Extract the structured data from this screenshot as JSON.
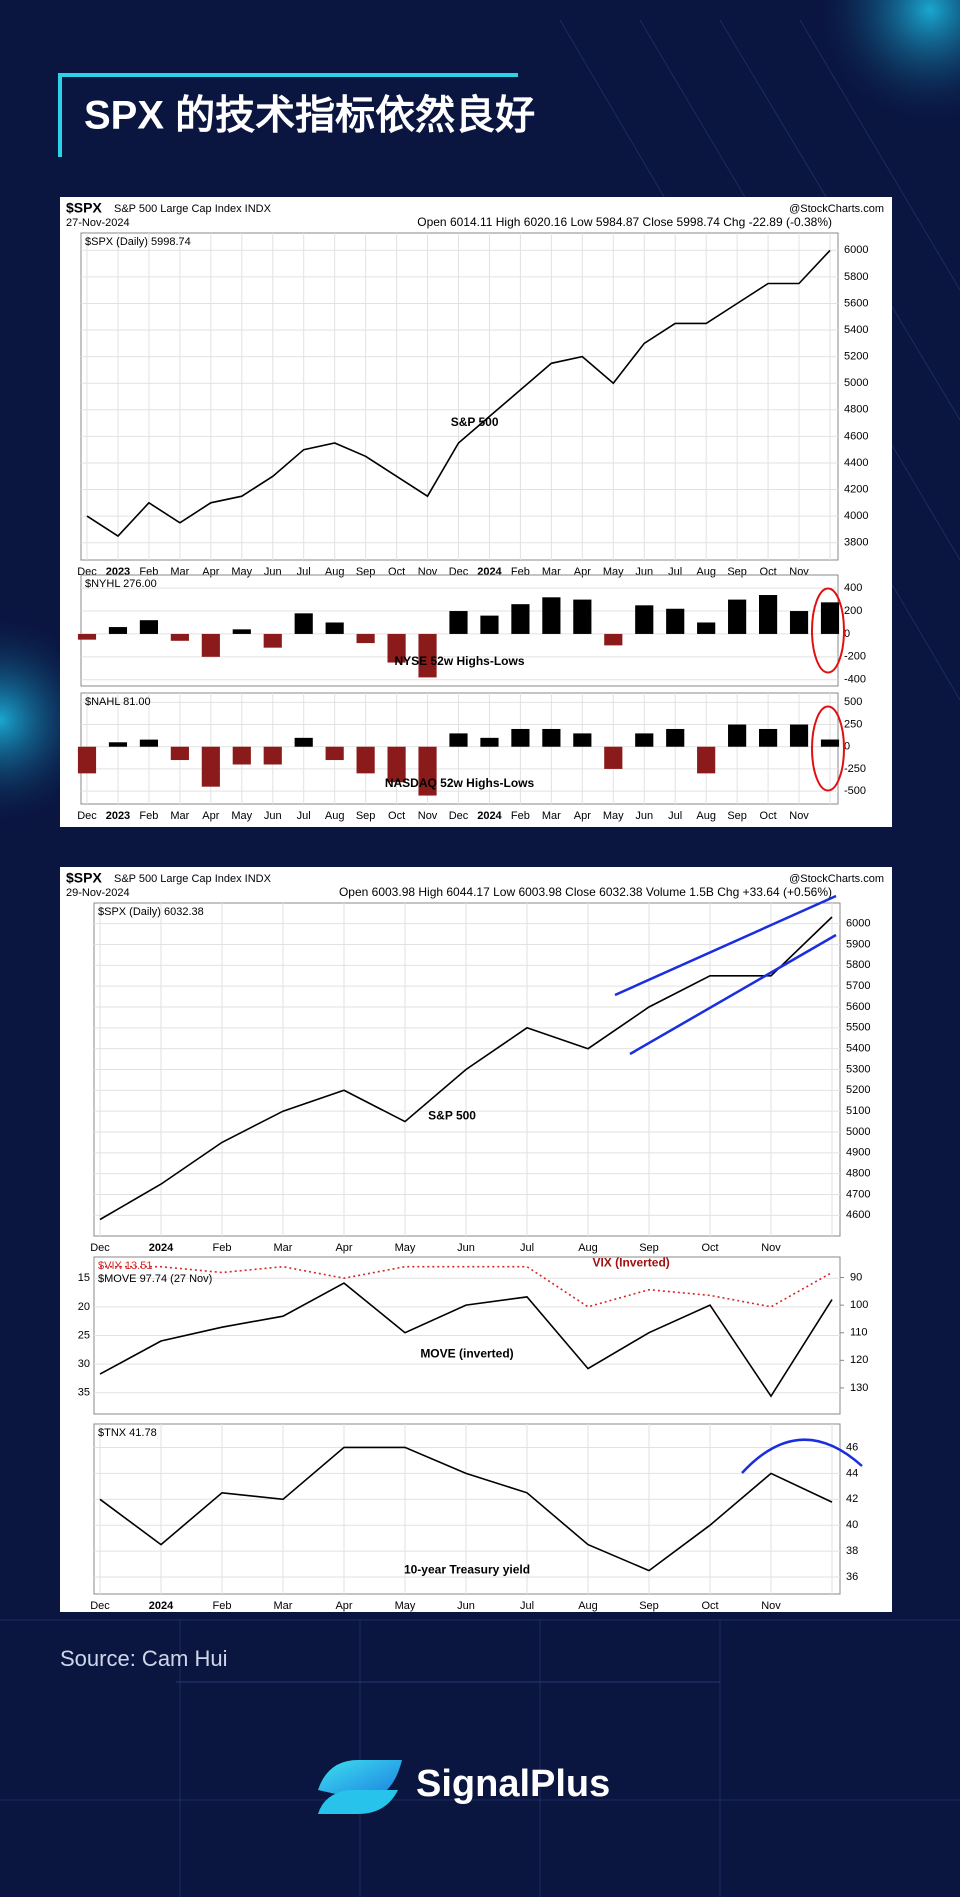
{
  "header": {
    "title": "SPX 的技术指标依然良好"
  },
  "figures": [
    {
      "symbol": "$SPX",
      "name": "S&P 500 Large Cap Index INDX",
      "date": "27-Nov-2024",
      "credit": "@StockCharts.com",
      "quote": "Open 6014.11  High 6020.16  Low 5984.87  Close 5998.74  Chg -22.89 (-0.38%)"
    },
    {
      "symbol": "$SPX",
      "name": "S&P 500 Large Cap Index INDX",
      "date": "29-Nov-2024",
      "credit": "@StockCharts.com",
      "quote": "Open 6003.98  High 6044.17  Low 6003.98  Close 6032.38  Volume 1.5B  Chg +33.64 (+0.56%)"
    }
  ],
  "chart_data": [
    {
      "type": "line",
      "yaxis_side": "right",
      "annotations": [
        "S&P 500"
      ],
      "categories": [
        "Dec",
        "2023",
        "Feb",
        "Mar",
        "Apr",
        "May",
        "Jun",
        "Jul",
        "Aug",
        "Sep",
        "Oct",
        "Nov",
        "Dec",
        "2024",
        "Feb",
        "Mar",
        "Apr",
        "May",
        "Jun",
        "Jul",
        "Aug",
        "Sep",
        "Oct",
        "Nov",
        null
      ],
      "series": [
        {
          "name": "$SPX (Daily) 5998.74",
          "color": "#000000",
          "values": [
            4000,
            3850,
            4100,
            3950,
            4100,
            4150,
            4300,
            4500,
            4550,
            4450,
            4300,
            4150,
            4550,
            4750,
            4950,
            5150,
            5200,
            5000,
            5300,
            5450,
            5450,
            5600,
            5750,
            5750,
            5999
          ]
        }
      ],
      "ylim": [
        3700,
        6100
      ],
      "yticks": [
        3800,
        4000,
        4200,
        4400,
        4600,
        4800,
        5000,
        5200,
        5400,
        5600,
        5800,
        6000
      ],
      "grid": true
    },
    {
      "type": "bar",
      "yaxis_side": "right",
      "annotations": [
        "NYSE  52w Highs-Lows"
      ],
      "series": [
        {
          "name": "$NYHL 276.00",
          "color": "#000000",
          "negative_color": "#8b1a1a",
          "values": [
            -50,
            60,
            120,
            -60,
            -200,
            40,
            -120,
            180,
            100,
            -80,
            -250,
            -380,
            200,
            160,
            260,
            320,
            300,
            -100,
            250,
            220,
            100,
            300,
            340,
            200,
            276
          ]
        }
      ],
      "ylim": [
        -420,
        480
      ],
      "yticks": [
        -400,
        -200,
        0,
        200,
        400
      ],
      "grid": true
    },
    {
      "type": "bar",
      "yaxis_side": "right",
      "annotations": [
        "NASDAQ 52w Highs-Lows"
      ],
      "categories": [
        "Dec",
        "2023",
        "Feb",
        "Mar",
        "Apr",
        "May",
        "Jun",
        "Jul",
        "Aug",
        "Sep",
        "Oct",
        "Nov",
        "Dec",
        "2024",
        "Feb",
        "Mar",
        "Apr",
        "May",
        "Jun",
        "Jul",
        "Aug",
        "Sep",
        "Oct",
        "Nov",
        null
      ],
      "series": [
        {
          "name": "$NAHL 81.00",
          "color": "#000000",
          "negative_color": "#8b1a1a",
          "values": [
            -300,
            50,
            80,
            -150,
            -450,
            -200,
            -200,
            100,
            -150,
            -300,
            -400,
            -550,
            150,
            100,
            200,
            200,
            150,
            -250,
            150,
            200,
            -300,
            250,
            200,
            250,
            81
          ]
        }
      ],
      "ylim": [
        -600,
        560
      ],
      "yticks": [
        -500,
        -250,
        0,
        250,
        500
      ],
      "grid": true
    },
    {
      "type": "line",
      "yaxis_side": "right",
      "annotations": [
        "S&P 500"
      ],
      "categories": [
        "Dec",
        "2024",
        "Feb",
        "Mar",
        "Apr",
        "May",
        "Jun",
        "Jul",
        "Aug",
        "Sep",
        "Oct",
        "Nov",
        null
      ],
      "series": [
        {
          "name": "$SPX (Daily) 6032.38",
          "color": "#000000",
          "values": [
            4580,
            4750,
            4950,
            5100,
            5200,
            5050,
            5300,
            5500,
            5400,
            5600,
            5750,
            5750,
            6032
          ]
        }
      ],
      "ylim": [
        4520,
        6080
      ],
      "yticks": [
        4600,
        4700,
        4800,
        4900,
        5000,
        5100,
        5200,
        5300,
        5400,
        5500,
        5600,
        5700,
        5800,
        5900,
        6000
      ],
      "grid": true
    },
    {
      "type": "line",
      "yaxis_side": "left",
      "annotations": [
        "VIX (Inverted)",
        "MOVE (inverted)"
      ],
      "series": [
        {
          "name": "$VIX 13.51",
          "color": "#d62728",
          "dashed": true,
          "values": [
            13,
            13,
            14,
            13,
            15,
            13,
            13,
            13,
            20,
            17,
            18,
            20,
            14
          ]
        },
        {
          "name": "$MOVE 97.74 (27 Nov)",
          "color": "#000000",
          "axis": "y2",
          "values": [
            125,
            113,
            108,
            104,
            92,
            110,
            100,
            97,
            123,
            110,
            100,
            133,
            98
          ]
        }
      ],
      "ylim": [
        38,
        12
      ],
      "yticks": [
        15,
        20,
        25,
        30,
        35
      ],
      "y2lim": [
        138,
        84
      ],
      "y2ticks": [
        90,
        100,
        110,
        120,
        130
      ],
      "grid": true
    },
    {
      "type": "line",
      "yaxis_side": "right",
      "annotations": [
        "10-year Treasury yield"
      ],
      "categories": [
        "Dec",
        "2024",
        "Feb",
        "Mar",
        "Apr",
        "May",
        "Jun",
        "Jul",
        "Aug",
        "Sep",
        "Oct",
        "Nov",
        null
      ],
      "series": [
        {
          "name": "$TNX 41.78",
          "color": "#000000",
          "values": [
            42,
            38.5,
            42.5,
            42,
            46,
            46,
            44,
            42.5,
            38.5,
            36.5,
            40,
            44,
            41.78
          ]
        }
      ],
      "ylim": [
        35,
        47.5
      ],
      "yticks": [
        36,
        38,
        40,
        42,
        44,
        46
      ],
      "grid": true
    }
  ],
  "source": "Source: Cam Hui",
  "brand": "SignalPlus"
}
